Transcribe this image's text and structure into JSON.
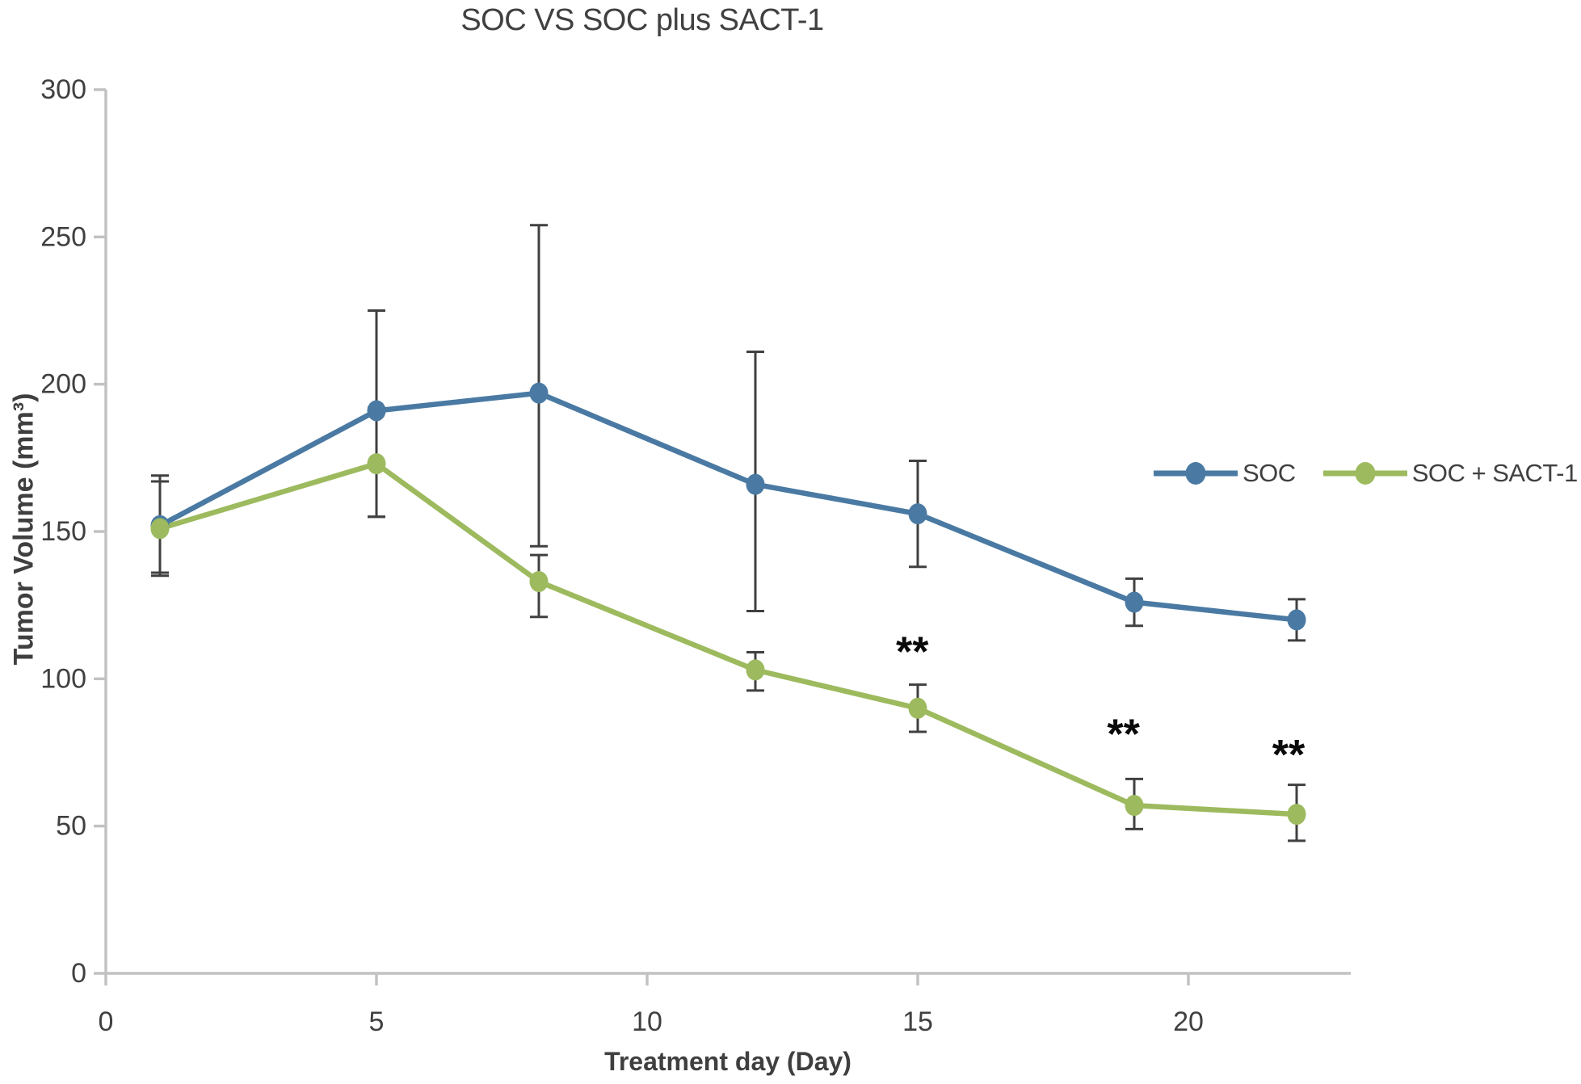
{
  "title": "SOC VS SOC plus SACT-1",
  "colors": {
    "soc": "#4a7aa3",
    "soc_sact": "#9dba5e",
    "error_bar": "#404040",
    "axis_line": "#c2c2c2",
    "text": "#404040",
    "annotation": "#0a0a0a"
  },
  "legend": {
    "items": [
      {
        "label": "SOC",
        "color": "#4a7aa3"
      },
      {
        "label": "SOC + SACT-1",
        "color": "#9dba5e"
      }
    ]
  },
  "chart_data": {
    "type": "line",
    "title": "SOC VS SOC plus SACT-1",
    "xlabel": "Treatment day (Day)",
    "ylabel": "Tumor Volume (mm³)",
    "x": [
      1,
      5,
      8,
      12,
      15,
      19,
      22
    ],
    "xlim": [
      0,
      23
    ],
    "ylim": [
      0,
      300
    ],
    "x_ticks": [
      0,
      5,
      10,
      15,
      20
    ],
    "y_ticks": [
      0,
      50,
      100,
      150,
      200,
      250,
      300
    ],
    "grid": false,
    "legend_position": "right",
    "series": [
      {
        "name": "SOC",
        "color": "#4a7aa3",
        "values": [
          152,
          191,
          197,
          166,
          156,
          126,
          120
        ],
        "err_up": [
          17,
          34,
          57,
          45,
          18,
          8,
          7
        ],
        "err_down": [
          17,
          36,
          52,
          43,
          18,
          8,
          7
        ]
      },
      {
        "name": "SOC + SACT-1",
        "color": "#9dba5e",
        "values": [
          151,
          173,
          133,
          103,
          90,
          57,
          54
        ],
        "err_up": [
          16,
          19,
          9,
          6,
          8,
          9,
          10
        ],
        "err_down": [
          15,
          18,
          12,
          7,
          8,
          8,
          9
        ]
      }
    ],
    "annotations": [
      {
        "text": "**",
        "day": 14.9,
        "value": 109
      },
      {
        "text": "**",
        "day": 18.8,
        "value": 81
      },
      {
        "text": "**",
        "day": 21.85,
        "value": 74
      }
    ]
  }
}
